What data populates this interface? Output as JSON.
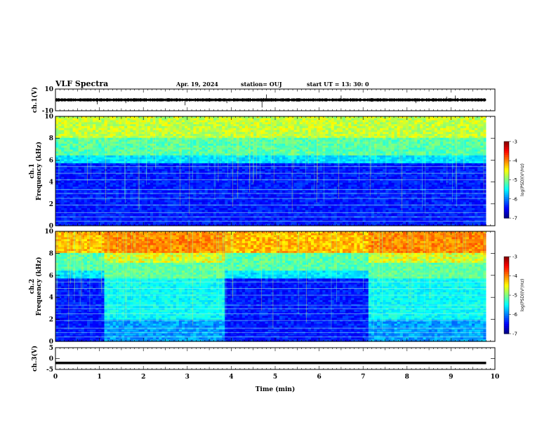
{
  "header": {
    "title": "VLF Spectra",
    "date": "Apr. 19, 2024",
    "station": "station= OUJ",
    "start": "start  UT  =   13: 30: 0"
  },
  "chart_data": [
    {
      "type": "line",
      "panel": "ch1-waveform",
      "ylabel": "ch.1(V)",
      "ylim": [
        -10,
        10
      ],
      "yticks": [
        "10",
        "-10"
      ],
      "xlim": [
        0,
        10
      ],
      "baseline": 0,
      "colors": {
        "trace": "#000000"
      }
    },
    {
      "type": "heatmap",
      "panel": "ch1-spectrogram",
      "ylabel": "ch.1\nFrequency (kHz)",
      "ylim": [
        0,
        10
      ],
      "yticks": [
        "0",
        "2",
        "4",
        "6",
        "8",
        "10"
      ],
      "xlim": [
        0,
        9.8
      ],
      "colorbar": {
        "label": "log(PSD)(V²/Hz)",
        "range": [
          -7,
          -3
        ],
        "ticks": [
          "-3",
          "-4",
          "-5",
          "-6",
          "-7"
        ]
      },
      "segments": [
        {
          "from": 0,
          "to": 9.8,
          "state": "quiet"
        }
      ]
    },
    {
      "type": "heatmap",
      "panel": "ch2-spectrogram",
      "ylabel": "ch.2\nFrequency (kHz)",
      "ylim": [
        0,
        10
      ],
      "yticks": [
        "0",
        "2",
        "4",
        "6",
        "8",
        "10"
      ],
      "xlim": [
        0,
        9.8
      ],
      "colorbar": {
        "label": "log(PSD)(V²/Hz)",
        "range": [
          -7,
          -3
        ],
        "ticks": [
          "-3",
          "-4",
          "-5",
          "-6",
          "-7"
        ]
      },
      "segments": [
        {
          "from": 0,
          "to": 1.1,
          "state": "quiet"
        },
        {
          "from": 1.1,
          "to": 3.85,
          "state": "active"
        },
        {
          "from": 3.85,
          "to": 7.1,
          "state": "quiet"
        },
        {
          "from": 7.1,
          "to": 9.8,
          "state": "active"
        }
      ]
    },
    {
      "type": "line",
      "panel": "ch3-waveform",
      "ylabel": "ch.3(V)",
      "ylim": [
        -5,
        5
      ],
      "yticks": [
        "5",
        "0",
        "-5"
      ],
      "xlim": [
        0,
        10
      ],
      "y_value": -2,
      "colors": {
        "trace": "#000000"
      }
    }
  ],
  "x_axis": {
    "label": "Time  (min)",
    "ticks": [
      "0",
      "1",
      "2",
      "3",
      "4",
      "5",
      "6",
      "7",
      "8",
      "9",
      "10"
    ]
  }
}
